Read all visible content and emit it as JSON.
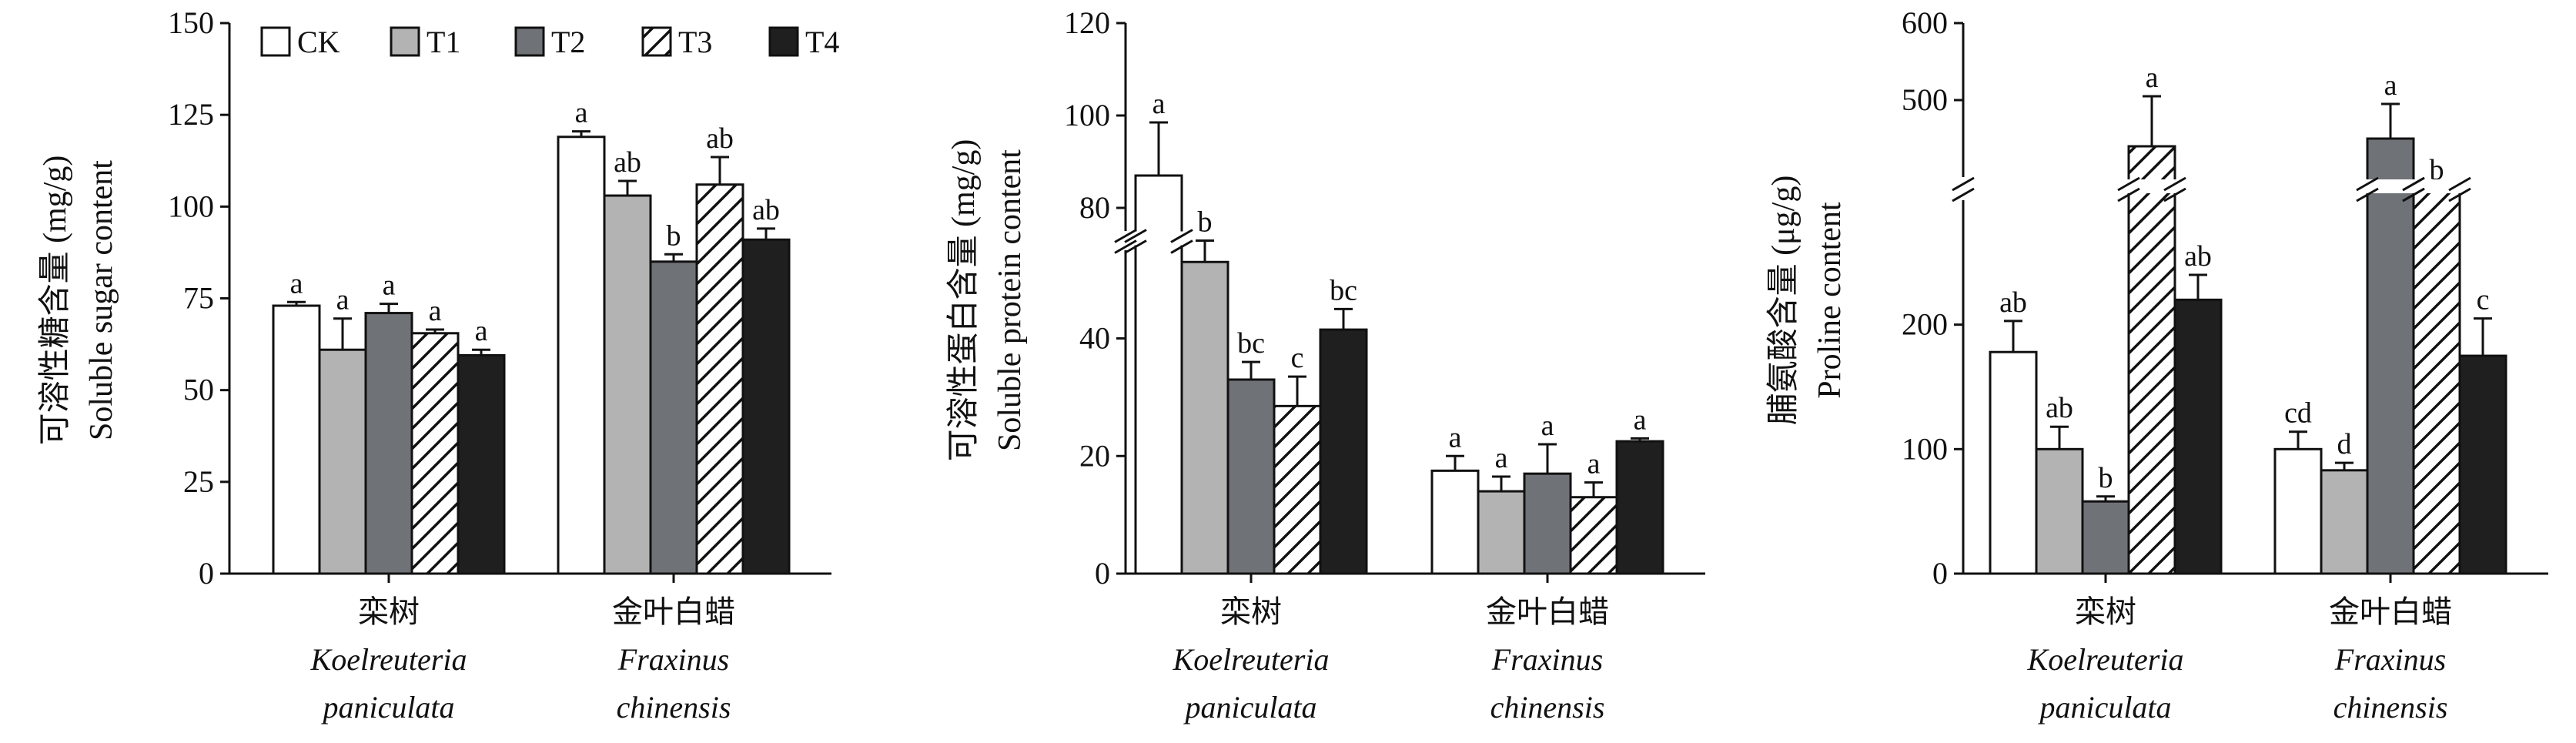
{
  "legend": [
    {
      "name": "CK",
      "fill": "white"
    },
    {
      "name": "T1",
      "fill": "lightgray"
    },
    {
      "name": "T2",
      "fill": "darkgray"
    },
    {
      "name": "T3",
      "fill": "hatch"
    },
    {
      "name": "T4",
      "fill": "black"
    }
  ],
  "colors": {
    "white": "#ffffff",
    "lightgray": "#b3b3b3",
    "darkgray": "#6f7377",
    "black": "#1f1f1f",
    "hatch": "#ffffff"
  },
  "group_labels": [
    {
      "cn": "栾树",
      "latin1": "Koelreuteria",
      "latin2": "paniculata"
    },
    {
      "cn": "金叶白蜡",
      "latin1": "Fraxinus",
      "latin2": "chinensis"
    }
  ],
  "chart_data": [
    {
      "type": "bar",
      "ylabel_cn": "可溶性糖含量 (mg/g)",
      "ylabel_en": "Soluble sugar content",
      "ylim": [
        0,
        150
      ],
      "yticks": [
        0,
        25,
        50,
        75,
        100,
        125,
        150
      ],
      "groups": [
        {
          "values": [
            73,
            61,
            71,
            65.5,
            59.5
          ],
          "errors": [
            1,
            8.5,
            2.5,
            1,
            1.5
          ],
          "letters": [
            "a",
            "a",
            "a",
            "a",
            "a"
          ]
        },
        {
          "values": [
            119,
            103,
            85,
            106,
            91
          ],
          "errors": [
            1.5,
            4,
            2,
            7.5,
            3
          ],
          "letters": [
            "a",
            "ab",
            "b",
            "ab",
            "ab"
          ]
        }
      ]
    },
    {
      "type": "bar",
      "ylabel_cn": "可溶性蛋白含量 (mg/g)",
      "ylabel_en": "Soluble protein content",
      "ylim": [
        0,
        120
      ],
      "yticks": [
        0,
        20,
        40,
        80,
        100,
        120
      ],
      "broken_axis": {
        "lower": [
          0,
          55
        ],
        "upper": [
          75,
          120
        ]
      },
      "groups": [
        {
          "values": [
            87,
            53,
            33,
            28.5,
            41.5
          ],
          "errors": [
            11.5,
            4.5,
            3,
            5,
            3.5
          ],
          "letters": [
            "a",
            "b",
            "bc",
            "c",
            "bc"
          ]
        },
        {
          "values": [
            17.5,
            14,
            17,
            13,
            22.5
          ],
          "errors": [
            2.5,
            2.5,
            5,
            2.5,
            0.5
          ],
          "letters": [
            "a",
            "a",
            "a",
            "a",
            "a"
          ]
        }
      ]
    },
    {
      "type": "bar",
      "ylabel_cn": "脯氨酸含量 (μg/g)",
      "ylabel_en": "Proline content",
      "ylim": [
        0,
        600
      ],
      "yticks": [
        0,
        100,
        200,
        500,
        600
      ],
      "broken_axis": {
        "lower": [
          0,
          300
        ],
        "upper": [
          400,
          600
        ]
      },
      "groups": [
        {
          "values": [
            178,
            100,
            58,
            440,
            220
          ],
          "errors": [
            25,
            18,
            4,
            65,
            20
          ],
          "letters": [
            "ab",
            "ab",
            "b",
            "a",
            "ab"
          ]
        },
        {
          "values": [
            100,
            83,
            450,
            375,
            175
          ],
          "errors": [
            14,
            6,
            45,
            14,
            30
          ],
          "letters": [
            "cd",
            "d",
            "a",
            "b",
            "c"
          ]
        }
      ]
    }
  ]
}
